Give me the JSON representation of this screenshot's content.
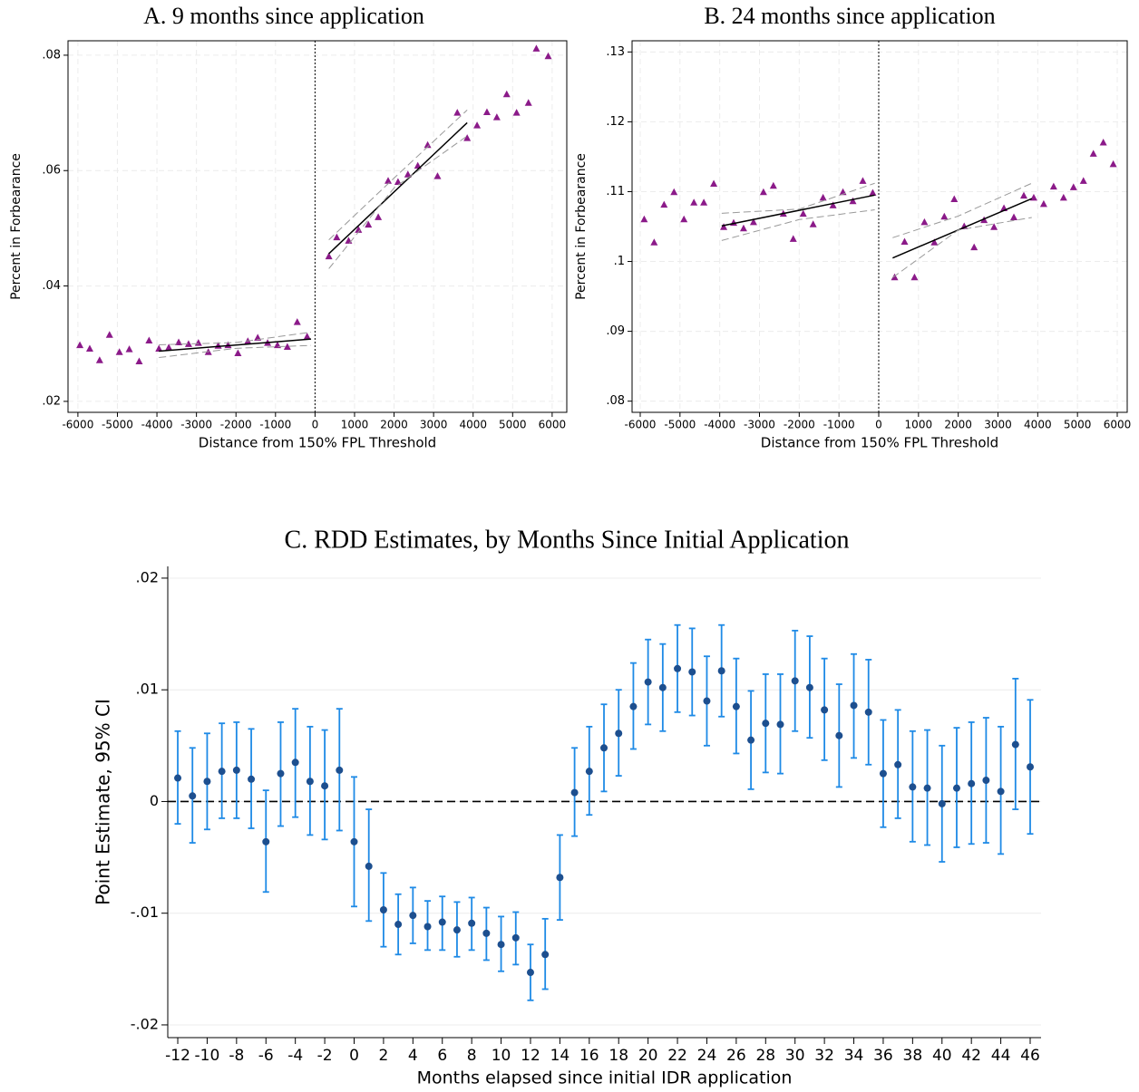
{
  "chart_data": [
    {
      "type": "scatter",
      "title": "A. 9 months since application",
      "x_label": "Distance from 150% FPL Threshold",
      "y_label": "Percent in Forbearance",
      "xlim": [
        -6250,
        6370
      ],
      "ylim": [
        0.0181,
        0.0825
      ],
      "xticks": [
        -6000,
        -5000,
        -4000,
        -3000,
        -2000,
        -1000,
        0,
        1000,
        2000,
        3000,
        4000,
        5000,
        6000
      ],
      "yticks": [
        {
          "value": 0.02,
          "label": ".02"
        },
        {
          "value": 0.04,
          "label": ".04"
        },
        {
          "value": 0.06,
          "label": ".06"
        },
        {
          "value": 0.08,
          "label": ".08"
        }
      ],
      "grid": "both",
      "reference_x": 0,
      "series": [
        {
          "color": "#8b1a89",
          "marker": "triangle",
          "x": [
            -5950,
            -5700,
            -5450,
            -5200,
            -4950,
            -4700,
            -4450,
            -4200,
            -3950,
            -3700,
            -3450,
            -3200,
            -2950,
            -2700,
            -2450,
            -2200,
            -1950,
            -1700,
            -1450,
            -1200,
            -950,
            -700,
            -450,
            -200,
            350,
            550,
            850,
            1100,
            1350,
            1600,
            1850,
            2100,
            2350,
            2600,
            2850,
            3100,
            3600,
            3850,
            4100,
            4350,
            4600,
            4850,
            5100,
            5400,
            5600,
            5900
          ],
          "values": [
            0.0297,
            0.0291,
            0.0271,
            0.0315,
            0.0285,
            0.029,
            0.0269,
            0.0305,
            0.0291,
            0.0293,
            0.0302,
            0.0299,
            0.0301,
            0.0285,
            0.0296,
            0.0297,
            0.0283,
            0.0304,
            0.031,
            0.0301,
            0.0297,
            0.0294,
            0.0337,
            0.0312,
            0.0451,
            0.0484,
            0.0478,
            0.0497,
            0.0506,
            0.0519,
            0.0582,
            0.058,
            0.0593,
            0.0608,
            0.0644,
            0.059,
            0.07,
            0.0656,
            0.0678,
            0.0701,
            0.0692,
            0.0732,
            0.07,
            0.0717,
            0.0811,
            0.0798
          ]
        },
        {
          "color": "#000000",
          "line": "solid",
          "x": [
            -3950,
            -100
          ],
          "values": [
            0.0287,
            0.0308
          ]
        },
        {
          "color": "#999999",
          "line": "dashed",
          "x": [
            -3950,
            -2000,
            -100
          ],
          "values": [
            0.0298,
            0.0302,
            0.032
          ]
        },
        {
          "color": "#999999",
          "line": "dashed",
          "x": [
            -3950,
            -2000,
            -100
          ],
          "values": [
            0.0276,
            0.0292,
            0.0297
          ]
        },
        {
          "color": "#000000",
          "line": "solid",
          "x": [
            350,
            3850
          ],
          "values": [
            0.0456,
            0.0683
          ]
        },
        {
          "color": "#999999",
          "line": "dashed",
          "x": [
            350,
            2000,
            3850
          ],
          "values": [
            0.048,
            0.0587,
            0.0705
          ]
        },
        {
          "color": "#999999",
          "line": "dashed",
          "x": [
            350,
            2000,
            3850
          ],
          "values": [
            0.043,
            0.057,
            0.066
          ]
        }
      ]
    },
    {
      "type": "scatter",
      "title": "B. 24 months since application",
      "x_label": "Distance from 150% FPL Threshold",
      "y_label": "Percent in Forbearance",
      "xlim": [
        -6205,
        6251
      ],
      "ylim": [
        0.0784,
        0.1316
      ],
      "xticks": [
        -6000,
        -5000,
        -4000,
        -3000,
        -2000,
        -1000,
        0,
        1000,
        2000,
        3000,
        4000,
        5000,
        6000
      ],
      "yticks": [
        {
          "value": 0.08,
          "label": ".08"
        },
        {
          "value": 0.09,
          "label": ".09"
        },
        {
          "value": 0.1,
          "label": ".1"
        },
        {
          "value": 0.11,
          "label": ".11"
        },
        {
          "value": 0.12,
          "label": ".12"
        },
        {
          "value": 0.13,
          "label": ".13"
        }
      ],
      "grid": "both",
      "reference_x": 0,
      "series": [
        {
          "color": "#8b1a89",
          "marker": "triangle",
          "x": [
            -5900,
            -5650,
            -5400,
            -5150,
            -4900,
            -4650,
            -4400,
            -4150,
            -3900,
            -3650,
            -3400,
            -3150,
            -2900,
            -2650,
            -2400,
            -2150,
            -1900,
            -1650,
            -1400,
            -1150,
            -900,
            -650,
            -400,
            -150,
            400,
            650,
            900,
            1150,
            1400,
            1650,
            1900,
            2150,
            2400,
            2650,
            2900,
            3150,
            3400,
            3650,
            3900,
            4150,
            4400,
            4650,
            4900,
            5150,
            5400,
            5650,
            5900
          ],
          "values": [
            0.106,
            0.1027,
            0.1081,
            0.1099,
            0.106,
            0.1084,
            0.1084,
            0.1111,
            0.1049,
            0.1055,
            0.1047,
            0.1056,
            0.1099,
            0.1108,
            0.1068,
            0.1032,
            0.1068,
            0.1053,
            0.1091,
            0.108,
            0.1099,
            0.1086,
            0.1115,
            0.1098,
            0.0977,
            0.1028,
            0.0977,
            0.1056,
            0.1027,
            0.1064,
            0.1089,
            0.105,
            0.102,
            0.1059,
            0.1049,
            0.1076,
            0.1063,
            0.1094,
            0.1091,
            0.1082,
            0.1107,
            0.1091,
            0.1106,
            0.1115,
            0.1154,
            0.117,
            0.1139
          ]
        },
        {
          "color": "#000000",
          "line": "solid",
          "x": [
            -3950,
            -100
          ],
          "values": [
            0.1051,
            0.1095
          ]
        },
        {
          "color": "#999999",
          "line": "dashed",
          "x": [
            -3950,
            -2000,
            -100
          ],
          "values": [
            0.1069,
            0.1075,
            0.1112
          ]
        },
        {
          "color": "#999999",
          "line": "dashed",
          "x": [
            -3950,
            -2000,
            -100
          ],
          "values": [
            0.103,
            0.106,
            0.1074
          ]
        },
        {
          "color": "#000000",
          "line": "solid",
          "x": [
            350,
            3850
          ],
          "values": [
            0.1005,
            0.109
          ]
        },
        {
          "color": "#999999",
          "line": "dashed",
          "x": [
            350,
            2000,
            3850
          ],
          "values": [
            0.1034,
            0.1065,
            0.1112
          ]
        },
        {
          "color": "#999999",
          "line": "dashed",
          "x": [
            350,
            2000,
            3850
          ],
          "values": [
            0.0977,
            0.1045,
            0.1063
          ]
        }
      ]
    },
    {
      "type": "errorbar",
      "title": "C. RDD Estimates, by Months Since Initial Application",
      "x_label": "Months elapsed since initial IDR application",
      "y_label": "Point Estimate, 95% CI",
      "xlim": [
        -12.68,
        46.74
      ],
      "ylim": [
        -0.02114,
        0.02105
      ],
      "xticks": [
        -12,
        -10,
        -8,
        -6,
        -4,
        -2,
        0,
        2,
        4,
        6,
        8,
        10,
        12,
        14,
        16,
        18,
        20,
        22,
        24,
        26,
        28,
        30,
        32,
        34,
        36,
        38,
        40,
        42,
        44,
        46
      ],
      "yticks": [
        {
          "value": -0.02,
          "label": "-.02"
        },
        {
          "value": -0.01,
          "label": "-.01"
        },
        0,
        {
          "value": 0.01,
          "label": ".01"
        },
        {
          "value": 0.02,
          "label": ".02"
        }
      ],
      "grid": "y",
      "reference_y": 0,
      "color": "#1e8ae6",
      "marker_color": "#1d4f8f",
      "x": [
        -12,
        -11,
        -10,
        -9,
        -8,
        -7,
        -6,
        -5,
        -4,
        -3,
        -2,
        -1,
        0,
        1,
        2,
        3,
        4,
        5,
        6,
        7,
        8,
        9,
        10,
        11,
        12,
        13,
        14,
        15,
        16,
        17,
        18,
        19,
        20,
        21,
        22,
        23,
        24,
        25,
        26,
        27,
        28,
        29,
        30,
        31,
        32,
        33,
        34,
        35,
        36,
        37,
        38,
        39,
        40,
        41,
        42,
        43,
        44,
        45,
        46
      ],
      "values": [
        0.0021,
        0.0005,
        0.0018,
        0.0027,
        0.0028,
        0.002,
        -0.0036,
        0.0025,
        0.0035,
        0.0018,
        0.0014,
        0.0028,
        -0.0036,
        -0.0058,
        -0.0097,
        -0.011,
        -0.0102,
        -0.0112,
        -0.0108,
        -0.0115,
        -0.0109,
        -0.0118,
        -0.0128,
        -0.0122,
        -0.0153,
        -0.0137,
        -0.0068,
        0.0008,
        0.0027,
        0.0048,
        0.0061,
        0.0085,
        0.0107,
        0.0102,
        0.0119,
        0.0116,
        0.009,
        0.0117,
        0.0085,
        0.0055,
        0.007,
        0.0069,
        0.0108,
        0.0102,
        0.0082,
        0.0059,
        0.0086,
        0.008,
        0.0025,
        0.0033,
        0.0013,
        0.0012,
        -0.0002,
        0.0012,
        0.0016,
        0.0019,
        0.0009,
        0.0051,
        0.0031
      ],
      "lower": [
        -0.002,
        -0.0037,
        -0.0025,
        -0.0015,
        -0.0015,
        -0.0024,
        -0.0081,
        -0.0022,
        -0.0014,
        -0.003,
        -0.0034,
        -0.0026,
        -0.0094,
        -0.0107,
        -0.013,
        -0.0137,
        -0.0127,
        -0.0133,
        -0.0133,
        -0.0139,
        -0.0133,
        -0.0142,
        -0.0152,
        -0.0146,
        -0.0178,
        -0.0168,
        -0.0106,
        -0.0031,
        -0.0012,
        0.0009,
        0.0023,
        0.0047,
        0.0069,
        0.0063,
        0.008,
        0.0077,
        0.005,
        0.0076,
        0.0043,
        0.0011,
        0.0026,
        0.0025,
        0.0063,
        0.0057,
        0.0037,
        0.0013,
        0.0039,
        0.0033,
        -0.0023,
        -0.0015,
        -0.0036,
        -0.0039,
        -0.0054,
        -0.0041,
        -0.0038,
        -0.0037,
        -0.0047,
        -0.0007,
        -0.0029
      ],
      "upper": [
        0.0063,
        0.0048,
        0.0061,
        0.007,
        0.0071,
        0.0065,
        0.001,
        0.0071,
        0.0083,
        0.0067,
        0.0064,
        0.0083,
        0.0022,
        -0.0007,
        -0.0064,
        -0.0083,
        -0.0077,
        -0.0089,
        -0.0085,
        -0.009,
        -0.0086,
        -0.0095,
        -0.0103,
        -0.0099,
        -0.0128,
        -0.0105,
        -0.003,
        0.0048,
        0.0067,
        0.0087,
        0.01,
        0.0124,
        0.0145,
        0.0141,
        0.0158,
        0.0155,
        0.013,
        0.0158,
        0.0128,
        0.0099,
        0.0114,
        0.0114,
        0.0153,
        0.0148,
        0.0128,
        0.0105,
        0.0132,
        0.0127,
        0.0073,
        0.0082,
        0.0063,
        0.0064,
        0.005,
        0.0066,
        0.0071,
        0.0075,
        0.0067,
        0.011,
        0.0091
      ]
    }
  ]
}
